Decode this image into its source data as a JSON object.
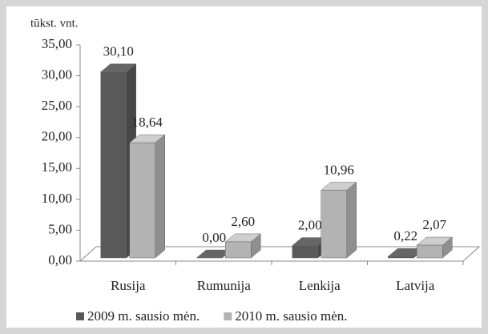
{
  "chart_data": {
    "type": "bar3d",
    "y_label": "tūkst. vnt.",
    "categories": [
      "Rusija",
      "Rumunija",
      "Lenkija",
      "Latvija"
    ],
    "series": [
      {
        "name": "2009 m. sausio mėn.",
        "color": "#595959",
        "values": [
          30.1,
          0.0,
          2.0,
          0.22
        ],
        "value_labels": [
          "30,10",
          "0,00",
          "2,00",
          "0,22"
        ]
      },
      {
        "name": "2010 m. sausio mėn.",
        "color": "#b3b3b3",
        "values": [
          18.64,
          2.6,
          10.96,
          2.07
        ],
        "value_labels": [
          "18,64",
          "2,60",
          "10,96",
          "2,07"
        ]
      }
    ],
    "ylim": [
      0,
      35
    ],
    "yticks": [
      {
        "value": 0,
        "label": "0,00"
      },
      {
        "value": 5,
        "label": "5,00"
      },
      {
        "value": 10,
        "label": "10,00"
      },
      {
        "value": 15,
        "label": "15,00"
      },
      {
        "value": 20,
        "label": "20,00"
      },
      {
        "value": 25,
        "label": "25,00"
      },
      {
        "value": 30,
        "label": "30,00"
      },
      {
        "value": 35,
        "label": "35,00"
      }
    ]
  }
}
